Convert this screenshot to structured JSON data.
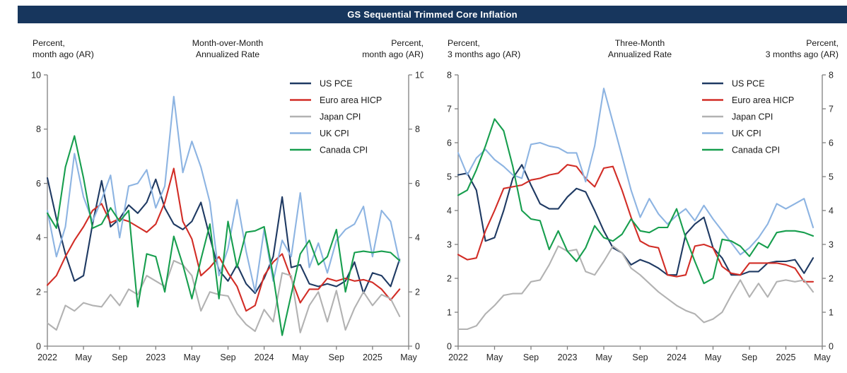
{
  "title": "GS Sequential Trimmed Core Inflation",
  "theme": {
    "title_bg": "#17365d",
    "title_fg": "#ffffff",
    "axis_color": "#7f7f7f",
    "tick_label_color": "#262626",
    "series_colors": {
      "US PCE": "#1f3a63",
      "Euro area HICP": "#d22d26",
      "Japan CPI": "#b2b2b2",
      "UK CPI": "#8db4e2",
      "Canada CPI": "#179e4e"
    }
  },
  "chart_data": [
    {
      "type": "line",
      "panel": "left",
      "title": "Month-over-Month Annualized Rate",
      "header": {
        "left": [
          "Percent,",
          "month ago (AR)"
        ],
        "center": [
          "Month-over-Month",
          "Annualized Rate"
        ],
        "right": [
          "Percent,",
          "month ago (AR)"
        ]
      },
      "x_start": "Jan 2022",
      "x_end": "Apr 2025",
      "frequency": "monthly",
      "x_axis_month_span": 40,
      "x_tick_labels": [
        "2022",
        "May",
        "Sep",
        "2023",
        "May",
        "Sep",
        "2024",
        "May",
        "Sep",
        "2025",
        "May"
      ],
      "x_tick_month_index": [
        0,
        4,
        8,
        12,
        16,
        20,
        24,
        28,
        32,
        36,
        40
      ],
      "ylim": [
        0,
        10
      ],
      "yticks": [
        0,
        2,
        4,
        6,
        8,
        10
      ],
      "grid": false,
      "legend_position": "inside-top-right",
      "series": [
        {
          "name": "US PCE",
          "color": "#1f3a63",
          "values": [
            6.2,
            4.7,
            3.4,
            2.4,
            2.6,
            4.5,
            6.1,
            4.4,
            4.7,
            5.2,
            4.9,
            5.3,
            6.15,
            5.1,
            4.5,
            4.3,
            4.6,
            5.3,
            4.0,
            2.8,
            2.4,
            3.0,
            2.3,
            1.95,
            2.5,
            3.3,
            5.5,
            2.9,
            3.0,
            2.3,
            2.2,
            2.3,
            2.2,
            2.4,
            3.1,
            1.95,
            2.7,
            2.6,
            2.2,
            3.2
          ]
        },
        {
          "name": "Euro area HICP",
          "color": "#d22d26",
          "values": [
            2.25,
            2.6,
            3.3,
            3.9,
            4.4,
            5.0,
            5.25,
            4.55,
            4.7,
            4.6,
            4.4,
            4.2,
            4.5,
            5.3,
            6.55,
            4.6,
            3.95,
            2.6,
            2.9,
            3.3,
            2.7,
            2.2,
            1.3,
            1.5,
            2.6,
            3.1,
            3.4,
            2.5,
            1.6,
            2.1,
            2.1,
            2.5,
            2.4,
            2.5,
            2.4,
            2.45,
            2.35,
            2.1,
            1.7,
            2.1
          ]
        },
        {
          "name": "Japan CPI",
          "color": "#b2b2b2",
          "values": [
            0.85,
            0.6,
            1.5,
            1.3,
            1.6,
            1.5,
            1.45,
            1.9,
            1.5,
            2.1,
            1.9,
            2.6,
            2.4,
            2.2,
            3.15,
            3.0,
            2.6,
            1.3,
            2.0,
            1.9,
            1.85,
            1.2,
            0.8,
            0.55,
            1.35,
            0.9,
            2.7,
            2.6,
            0.5,
            1.5,
            2.0,
            0.9,
            2.05,
            0.6,
            1.4,
            2.0,
            1.5,
            1.9,
            1.75,
            1.1
          ]
        },
        {
          "name": "UK CPI",
          "color": "#8db4e2",
          "values": [
            5.0,
            3.3,
            4.4,
            7.1,
            5.5,
            4.6,
            5.4,
            6.3,
            4.0,
            5.9,
            6.0,
            6.5,
            5.1,
            5.9,
            9.2,
            6.4,
            7.55,
            6.6,
            5.3,
            2.6,
            3.6,
            5.4,
            3.5,
            2.0,
            4.3,
            2.4,
            3.9,
            3.3,
            5.65,
            2.9,
            3.8,
            2.7,
            3.9,
            4.3,
            4.5,
            5.15,
            3.3,
            5.0,
            4.6,
            3.1
          ]
        },
        {
          "name": "Canada CPI",
          "color": "#179e4e",
          "values": [
            4.9,
            4.35,
            6.6,
            7.75,
            6.2,
            4.35,
            4.5,
            5.1,
            4.6,
            5.0,
            1.45,
            3.4,
            3.3,
            2.0,
            4.05,
            3.0,
            1.75,
            3.2,
            4.5,
            1.75,
            4.6,
            2.9,
            4.2,
            4.25,
            4.4,
            2.6,
            0.4,
            1.9,
            3.4,
            3.9,
            3.0,
            3.3,
            4.3,
            2.0,
            3.45,
            3.5,
            3.45,
            3.5,
            3.45,
            3.15
          ]
        }
      ]
    },
    {
      "type": "line",
      "panel": "right",
      "title": "Three-Month Annualized Rate",
      "header": {
        "left": [
          "Percent,",
          "3 months ago (AR)"
        ],
        "center": [
          "Three-Month",
          "Annualized Rate"
        ],
        "right": [
          "Percent,",
          "3 months ago (AR)"
        ]
      },
      "x_start": "Jan 2022",
      "x_end": "Apr 2025",
      "frequency": "monthly",
      "x_axis_month_span": 40,
      "x_tick_labels": [
        "2022",
        "May",
        "Sep",
        "2023",
        "May",
        "Sep",
        "2024",
        "May",
        "Sep",
        "2025",
        "May"
      ],
      "x_tick_month_index": [
        0,
        4,
        8,
        12,
        16,
        20,
        24,
        28,
        32,
        36,
        40
      ],
      "ylim": [
        0,
        8
      ],
      "yticks": [
        0,
        1,
        2,
        3,
        4,
        5,
        6,
        7,
        8
      ],
      "grid": false,
      "legend_position": "inside-top-right",
      "series": [
        {
          "name": "US PCE",
          "color": "#1f3a63",
          "values": [
            5.05,
            5.1,
            4.6,
            3.1,
            3.2,
            4.0,
            4.95,
            5.35,
            4.75,
            4.2,
            4.05,
            4.05,
            4.4,
            4.65,
            4.55,
            4.0,
            3.4,
            2.9,
            2.75,
            2.4,
            2.55,
            2.45,
            2.3,
            2.1,
            2.1,
            3.3,
            3.6,
            3.8,
            2.9,
            2.6,
            2.1,
            2.1,
            2.2,
            2.2,
            2.45,
            2.5,
            2.5,
            2.55,
            2.15,
            2.6
          ]
        },
        {
          "name": "Euro area HICP",
          "color": "#d22d26",
          "values": [
            2.7,
            2.55,
            2.6,
            3.4,
            4.0,
            4.65,
            4.7,
            4.75,
            4.9,
            4.95,
            5.05,
            5.1,
            5.35,
            5.3,
            4.95,
            4.7,
            5.25,
            5.3,
            4.6,
            3.8,
            3.1,
            2.95,
            2.9,
            2.1,
            2.05,
            2.1,
            2.95,
            3.0,
            2.9,
            2.35,
            2.15,
            2.1,
            2.45,
            2.45,
            2.45,
            2.45,
            2.4,
            2.3,
            1.9,
            1.9
          ]
        },
        {
          "name": "Japan CPI",
          "color": "#b2b2b2",
          "values": [
            0.5,
            0.5,
            0.6,
            0.95,
            1.2,
            1.5,
            1.55,
            1.55,
            1.9,
            1.95,
            2.4,
            2.95,
            2.8,
            2.85,
            2.2,
            2.1,
            2.5,
            2.95,
            2.75,
            2.3,
            2.1,
            1.85,
            1.6,
            1.4,
            1.2,
            1.05,
            0.95,
            0.7,
            0.8,
            1.0,
            1.5,
            1.95,
            1.45,
            1.85,
            1.45,
            1.9,
            1.95,
            1.9,
            1.95,
            1.6
          ]
        },
        {
          "name": "UK CPI",
          "color": "#8db4e2",
          "values": [
            5.7,
            5.05,
            5.55,
            5.8,
            5.5,
            5.3,
            5.05,
            4.95,
            5.95,
            6.0,
            5.9,
            5.85,
            5.7,
            5.7,
            4.85,
            5.9,
            7.6,
            6.6,
            5.6,
            4.6,
            3.8,
            4.35,
            3.9,
            3.6,
            3.85,
            4.05,
            3.7,
            4.15,
            3.75,
            3.4,
            3.05,
            2.7,
            2.9,
            3.2,
            3.6,
            4.2,
            4.05,
            4.2,
            4.35,
            3.5
          ]
        },
        {
          "name": "Canada CPI",
          "color": "#179e4e",
          "values": [
            4.45,
            4.6,
            5.2,
            5.9,
            6.7,
            6.35,
            5.3,
            4.0,
            3.75,
            3.7,
            2.85,
            3.4,
            2.8,
            2.5,
            2.9,
            3.55,
            3.2,
            3.1,
            3.3,
            3.75,
            3.4,
            3.35,
            3.5,
            3.5,
            4.05,
            3.2,
            2.5,
            1.85,
            2.0,
            3.15,
            3.1,
            2.95,
            2.65,
            3.05,
            2.9,
            3.35,
            3.4,
            3.4,
            3.35,
            3.25
          ]
        }
      ]
    }
  ]
}
